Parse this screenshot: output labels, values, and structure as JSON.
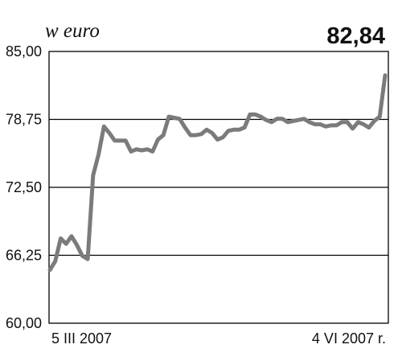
{
  "chart_data": {
    "type": "line",
    "ylabel": "w euro",
    "last_value_label": "82,84",
    "ylim": [
      60,
      85
    ],
    "yticks": [
      "85,00",
      "78,75",
      "72,50",
      "66,25",
      "60,00"
    ],
    "ytick_values": [
      85,
      78.75,
      72.5,
      66.25,
      60
    ],
    "grid": true,
    "start_label": "5 III 2007",
    "end_label": "4 VI 2007 r.",
    "colors": {
      "line": "#7b7b7b",
      "grid": "#000000",
      "frame": "#000000"
    },
    "series": [
      {
        "values": [
          64.9,
          65.7,
          67.8,
          67.3,
          68.0,
          67.2,
          66.2,
          65.9,
          73.6,
          75.5,
          78.1,
          77.5,
          76.8,
          76.8,
          76.8,
          75.8,
          76.0,
          75.9,
          76.0,
          75.8,
          76.9,
          77.3,
          79.0,
          78.9,
          78.8,
          78.0,
          77.3,
          77.3,
          77.4,
          77.8,
          77.5,
          76.9,
          77.1,
          77.7,
          77.8,
          77.8,
          78.0,
          79.2,
          79.2,
          79.0,
          78.7,
          78.5,
          78.8,
          78.8,
          78.5,
          78.6,
          78.7,
          78.8,
          78.5,
          78.3,
          78.3,
          78.1,
          78.2,
          78.2,
          78.5,
          78.5,
          77.9,
          78.5,
          78.3,
          78.0,
          78.6,
          79.0,
          82.8
        ]
      }
    ]
  }
}
